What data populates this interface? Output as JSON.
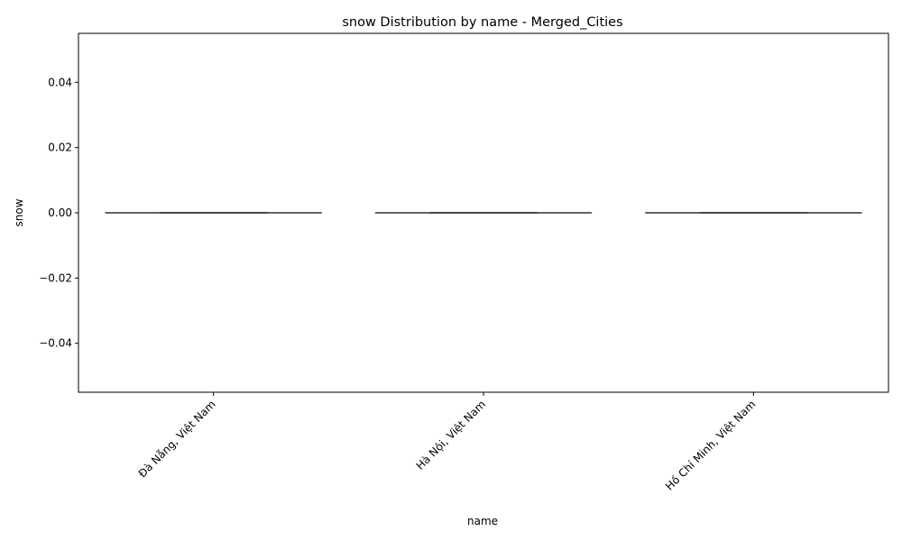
{
  "chart_data": {
    "type": "box",
    "title": "snow Distribution by name - Merged_Cities",
    "xlabel": "name",
    "ylabel": "snow",
    "categories": [
      "Đà Nẵng, Việt Nam",
      "Hà Nội, Việt Nam",
      "Hồ Chí Minh, Việt Nam"
    ],
    "boxes": [
      {
        "min": 0,
        "q1": 0,
        "median": 0,
        "q3": 0,
        "max": 0
      },
      {
        "min": 0,
        "q1": 0,
        "median": 0,
        "q3": 0,
        "max": 0
      },
      {
        "min": 0,
        "q1": 0,
        "median": 0,
        "q3": 0,
        "max": 0
      }
    ],
    "yticks": [
      -0.04,
      -0.02,
      0.0,
      0.02,
      0.04
    ],
    "ytick_labels": [
      "−0.04",
      "−0.02",
      "0.00",
      "0.02",
      "0.04"
    ],
    "ylim": [
      -0.055,
      0.055
    ],
    "grid": false,
    "colors": {
      "box_line": "#3f3f3f",
      "axis": "#000000"
    }
  }
}
